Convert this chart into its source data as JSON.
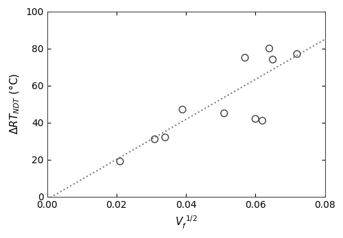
{
  "x_data": [
    0.021,
    0.031,
    0.034,
    0.039,
    0.051,
    0.057,
    0.06,
    0.062,
    0.064,
    0.065,
    0.072
  ],
  "y_data": [
    19,
    31,
    32,
    47,
    45,
    75,
    42,
    41,
    80,
    74,
    77
  ],
  "trendline_x": [
    0.0,
    0.08
  ],
  "trendline_slope": 1080,
  "trendline_intercept": -1.5,
  "xlabel_text": "V",
  "xlabel_sub": "f",
  "xlabel_sup": "1/2",
  "ylabel_sub": "NDT",
  "ylabel_unit": " (°C)",
  "xlim": [
    0.0,
    0.08
  ],
  "ylim": [
    0,
    100
  ],
  "xticks": [
    0.0,
    0.02,
    0.04,
    0.06,
    0.08
  ],
  "yticks": [
    0,
    20,
    40,
    60,
    80,
    100
  ],
  "marker_size": 7,
  "marker_color": "none",
  "marker_edge_color": "#4a4a4a",
  "line_color": "#7a7a7a",
  "line_style": ":",
  "line_width": 1.5,
  "background_color": "#ffffff",
  "tick_labelsize": 10,
  "spine_color": "#444444",
  "spine_linewidth": 0.8
}
